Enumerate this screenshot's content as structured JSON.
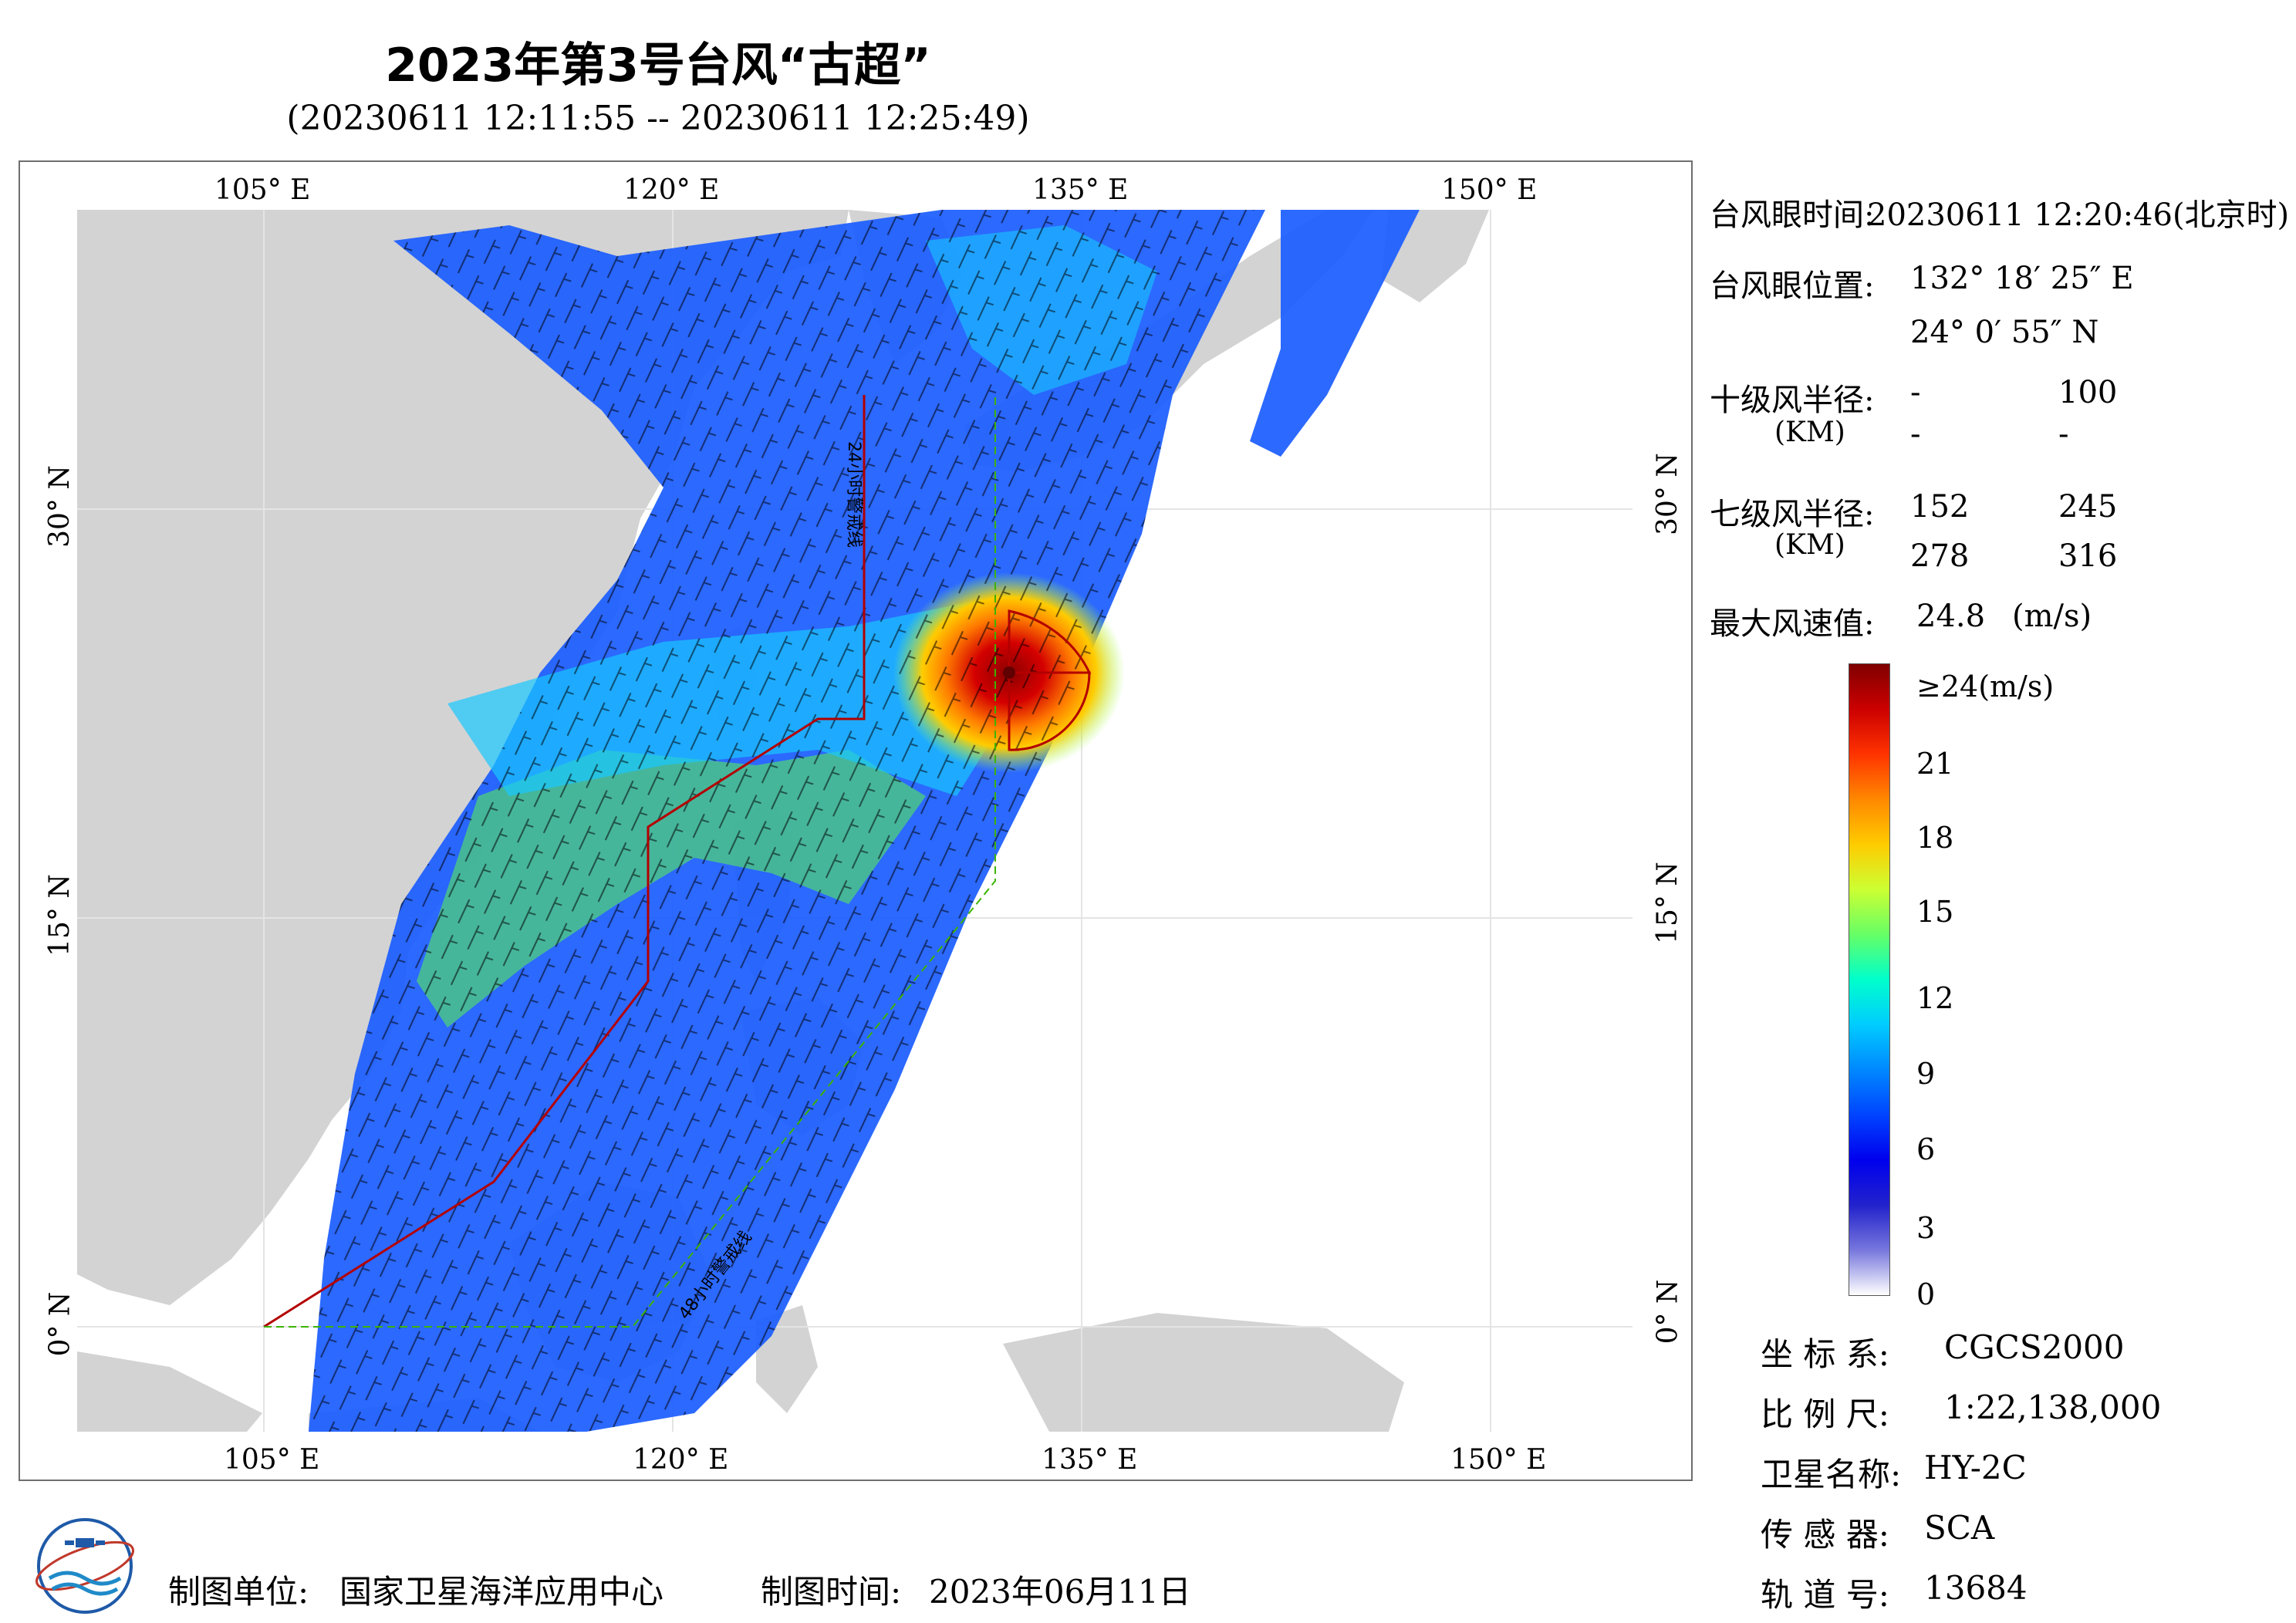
{
  "header": {
    "title": "2023年第3号台风“古超”",
    "subtitle": "(20230611 12:11:55 -- 20230611 12:25:49)"
  },
  "map": {
    "lon_labels": [
      "105° E",
      "120° E",
      "135° E",
      "150° E"
    ],
    "lat_labels": [
      "30° N",
      "15° N",
      "0° N"
    ],
    "annotations": [
      "24小时警戒线",
      "48小时警戒线"
    ],
    "colors": {
      "land": "#d3d3d3",
      "sea": "#ffffff",
      "warning_24h": "#b30000",
      "warning_48h": "#3cb300",
      "wind_barb": "#000000",
      "eye_circle": "#b30000"
    }
  },
  "info": {
    "eye_time_label": "台风眼时间:",
    "eye_time_value": "20230611 12:20:46(北京时)",
    "eye_pos_label": "台风眼位置:",
    "eye_lon": "132° 18′ 25″ E",
    "eye_lat": "24° 0′ 55″ N",
    "r10_label": "十级风半径:",
    "r10_unit": "(KM)",
    "r10_values": [
      "-",
      "100",
      "-",
      "-"
    ],
    "r7_label": "七级风半径:",
    "r7_unit": "(KM)",
    "r7_values": [
      "152",
      "245",
      "278",
      "316"
    ],
    "max_wind_label": "最大风速值:",
    "max_wind_value": "24.8",
    "max_wind_unit": "(m/s)"
  },
  "legend": {
    "labels": [
      "≥24(m/s)",
      "21",
      "18",
      "15",
      "12",
      "9",
      "6",
      "3",
      "0"
    ],
    "colors": [
      "#800000",
      "#cc0000",
      "#ff3300",
      "#ff8800",
      "#ffcc00",
      "#ccff33",
      "#66ff66",
      "#00ffcc",
      "#00ccff",
      "#0088ff",
      "#0044ff",
      "#0000ee",
      "#2222cc",
      "#7777dd",
      "#ffffff"
    ]
  },
  "meta": {
    "crs_label": "坐 标 系:",
    "crs_value": "CGCS2000",
    "scale_label": "比 例 尺:",
    "scale_value": "1:22,138,000",
    "sat_label": "卫星名称:",
    "sat_value": "HY-2C",
    "sensor_label": "传 感 器:",
    "sensor_value": "SCA",
    "orbit_label": "轨 道 号:",
    "orbit_value": "13684"
  },
  "footer": {
    "org_label": "制图单位:",
    "org_value": "国家卫星海洋应用中心",
    "date_label": "制图时间:",
    "date_value": "2023年06月11日"
  }
}
